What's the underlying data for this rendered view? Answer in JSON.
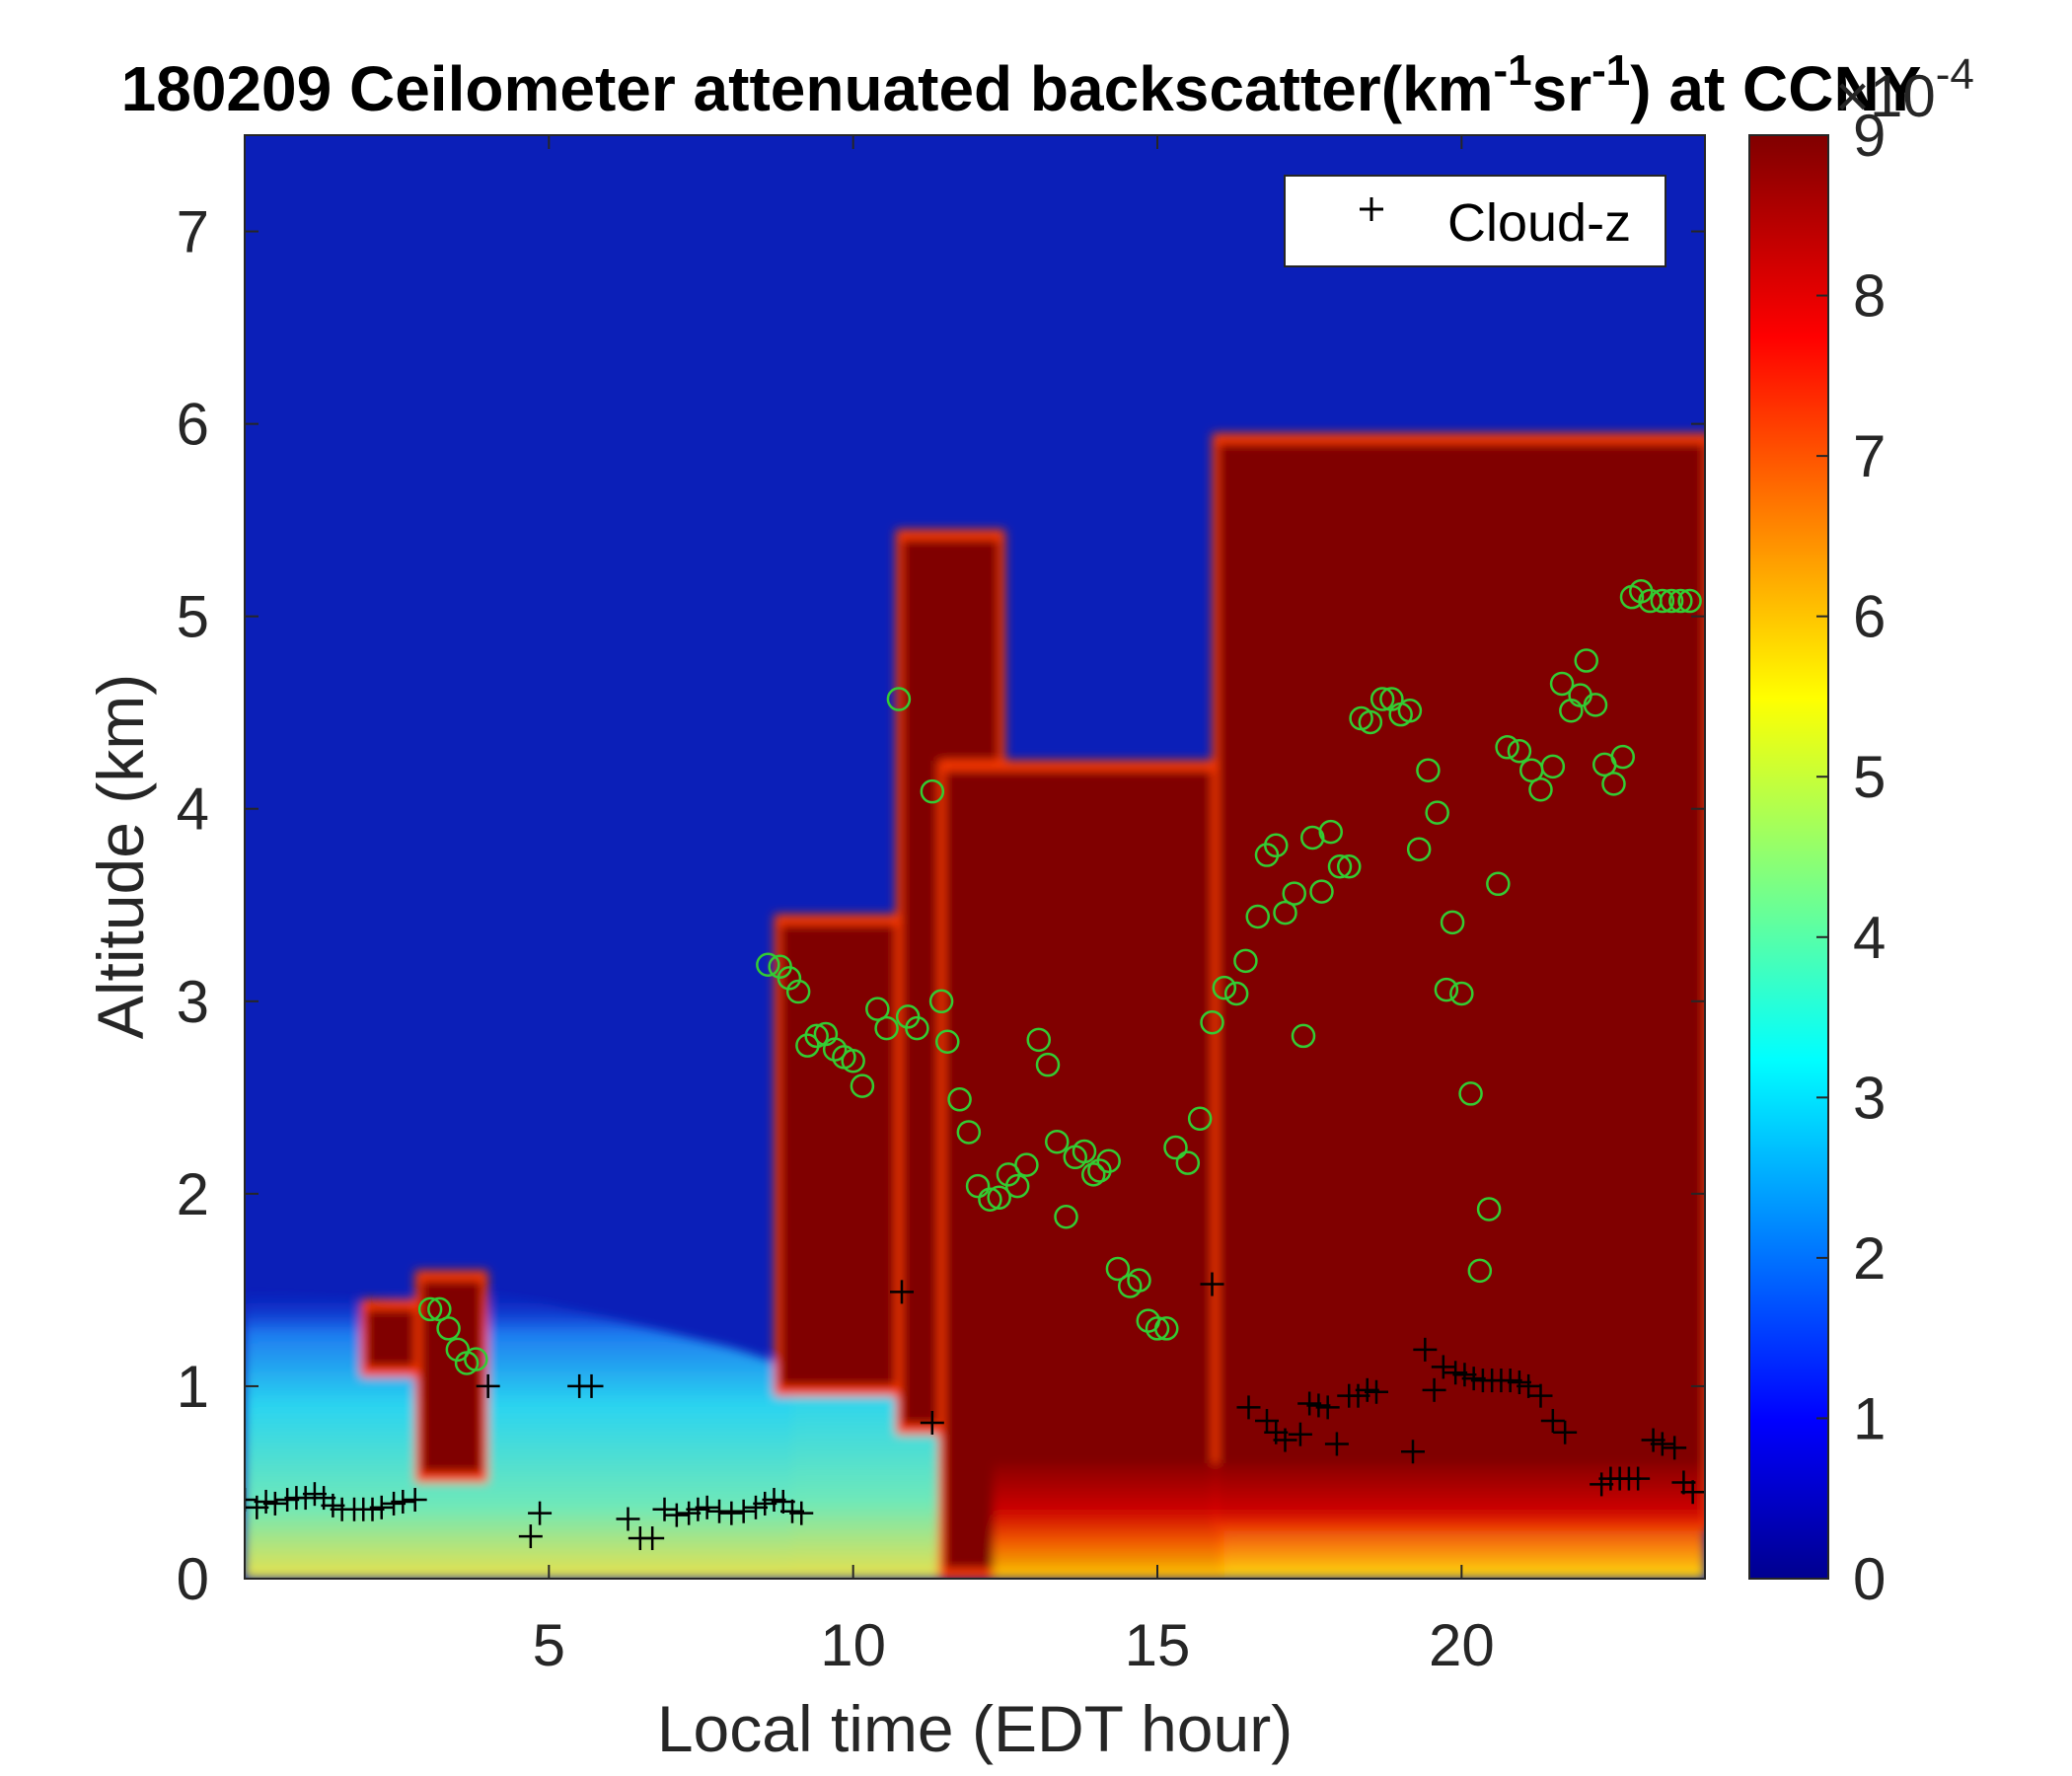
{
  "chart_data": {
    "type": "heatmap",
    "title": {
      "prefix": "180209 Ceilometer attenuated backscatter(km",
      "sup1": "-1",
      "mid": "sr",
      "sup2": "-1",
      "suffix": ") at CCNY"
    },
    "xlabel": "Local time (EDT hour)",
    "ylabel": "Altitude (km)",
    "xlim": [
      0,
      24
    ],
    "ylim": [
      0,
      7.5
    ],
    "xticks": [
      5,
      10,
      15,
      20
    ],
    "yticks": [
      0,
      1,
      2,
      3,
      4,
      5,
      6,
      7
    ],
    "colorbar": {
      "colormap": "jet",
      "range": [
        0,
        9
      ],
      "ticks": [
        0,
        1,
        2,
        3,
        4,
        5,
        6,
        7,
        8,
        9
      ],
      "exponent_label": {
        "base": "×10",
        "exp": "-4"
      }
    },
    "legend": {
      "entries": [
        "Cloud-z"
      ],
      "location": "top-right"
    },
    "features": {
      "surface_layer_top_km": [
        [
          0,
          1.5
        ],
        [
          2,
          1.45
        ],
        [
          4,
          1.5
        ],
        [
          6,
          1.35
        ],
        [
          8,
          1.2
        ],
        [
          9,
          1.1
        ],
        [
          10,
          1.0
        ]
      ],
      "cloud_regions": [
        {
          "time_start": 2.0,
          "time_end": 2.8,
          "base_km": 1.1,
          "top_km": 1.4
        },
        {
          "time_start": 2.9,
          "time_end": 3.9,
          "base_km": 0.55,
          "top_km": 1.55
        },
        {
          "time_start": 8.8,
          "time_end": 11.5,
          "base_km": 1.0,
          "top_km": 3.4
        },
        {
          "time_start": 10.8,
          "time_end": 12.4,
          "base_km": 0.8,
          "top_km": 5.4
        },
        {
          "time_start": 11.5,
          "time_end": 16.0,
          "base_km": 0.05,
          "top_km": 4.2
        },
        {
          "time_start": 16.0,
          "time_end": 24.0,
          "base_km": 0.3,
          "top_km": 5.9
        }
      ]
    },
    "series": [
      {
        "name": "Cloud-z",
        "marker": "+",
        "color": "#000000",
        "x": [
          0.0,
          0.2,
          0.35,
          0.5,
          0.7,
          0.85,
          1.0,
          1.15,
          1.3,
          1.45,
          1.6,
          1.8,
          1.95,
          2.1,
          2.25,
          2.45,
          2.6,
          2.8,
          4.0,
          4.7,
          4.85,
          5.5,
          5.7,
          6.3,
          6.5,
          6.7,
          6.9,
          7.1,
          7.3,
          7.45,
          7.6,
          7.8,
          8.0,
          8.2,
          8.4,
          8.55,
          8.7,
          8.85,
          9.0,
          9.15,
          10.8,
          11.3,
          15.9,
          16.5,
          16.8,
          16.95,
          17.1,
          17.35,
          17.5,
          17.65,
          17.8,
          17.95,
          18.15,
          18.3,
          18.45,
          18.6,
          19.2,
          19.4,
          19.55,
          19.7,
          19.9,
          20.05,
          20.2,
          20.35,
          20.5,
          20.65,
          20.8,
          20.95,
          21.1,
          21.3,
          21.5,
          21.7,
          22.3,
          22.45,
          22.6,
          22.75,
          22.9,
          23.15,
          23.3,
          23.5,
          23.65,
          23.8
        ],
        "y": [
          0.41,
          0.37,
          0.4,
          0.39,
          0.41,
          0.42,
          0.42,
          0.44,
          0.42,
          0.38,
          0.36,
          0.36,
          0.36,
          0.36,
          0.37,
          0.39,
          0.4,
          0.41,
          1.0,
          0.22,
          0.34,
          1.0,
          1.0,
          0.31,
          0.21,
          0.21,
          0.36,
          0.33,
          0.34,
          0.36,
          0.37,
          0.35,
          0.34,
          0.35,
          0.37,
          0.39,
          0.41,
          0.4,
          0.35,
          0.34,
          1.49,
          0.81,
          1.53,
          0.89,
          0.82,
          0.76,
          0.72,
          0.75,
          0.91,
          0.9,
          0.89,
          0.7,
          0.95,
          0.95,
          0.98,
          0.97,
          0.66,
          1.19,
          0.98,
          1.1,
          1.07,
          1.06,
          1.04,
          1.03,
          1.03,
          1.03,
          1.03,
          1.02,
          1.0,
          0.95,
          0.82,
          0.76,
          0.49,
          0.52,
          0.52,
          0.52,
          0.52,
          0.72,
          0.7,
          0.68,
          0.5,
          0.45
        ]
      },
      {
        "marker": "o",
        "color": "#33cc33",
        "x": [
          3.05,
          3.2,
          3.35,
          3.5,
          3.65,
          3.8,
          8.6,
          8.8,
          8.95,
          9.1,
          9.25,
          9.4,
          9.55,
          9.7,
          9.85,
          10.0,
          10.15,
          10.4,
          10.55,
          10.75,
          10.9,
          11.05,
          11.3,
          11.45,
          11.55,
          11.75,
          11.9,
          12.05,
          12.25,
          12.4,
          12.55,
          12.7,
          12.85,
          13.05,
          13.2,
          13.35,
          13.5,
          13.65,
          13.8,
          13.95,
          14.05,
          14.2,
          14.35,
          14.55,
          14.7,
          14.85,
          15.0,
          15.15,
          15.3,
          15.5,
          15.7,
          15.9,
          16.1,
          16.3,
          16.45,
          16.65,
          16.8,
          16.95,
          17.1,
          17.25,
          17.4,
          17.55,
          17.7,
          17.85,
          18.0,
          18.15,
          18.35,
          18.5,
          18.7,
          18.85,
          19.0,
          19.15,
          19.3,
          19.45,
          19.6,
          19.75,
          19.85,
          20.0,
          20.15,
          20.3,
          20.45,
          20.6,
          20.75,
          20.95,
          21.15,
          21.3,
          21.5,
          21.65,
          21.8,
          21.95,
          22.05,
          22.2,
          22.35,
          22.5,
          22.65,
          22.8,
          22.95,
          23.1,
          23.3,
          23.45,
          23.6,
          23.75
        ],
        "y": [
          1.4,
          1.4,
          1.3,
          1.19,
          1.12,
          1.14,
          3.19,
          3.18,
          3.12,
          3.05,
          2.77,
          2.82,
          2.83,
          2.75,
          2.71,
          2.69,
          2.56,
          2.96,
          2.86,
          4.57,
          2.92,
          2.86,
          4.09,
          3.0,
          2.79,
          2.49,
          2.32,
          2.04,
          1.97,
          1.98,
          2.1,
          2.04,
          2.15,
          2.8,
          2.67,
          2.27,
          1.88,
          2.19,
          2.22,
          2.1,
          2.12,
          2.17,
          1.61,
          1.52,
          1.55,
          1.34,
          1.3,
          1.3,
          2.24,
          2.16,
          2.39,
          2.89,
          3.07,
          3.04,
          3.21,
          3.44,
          3.76,
          3.81,
          3.46,
          3.56,
          2.82,
          3.85,
          3.57,
          3.88,
          3.7,
          3.7,
          4.47,
          4.45,
          4.57,
          4.57,
          4.49,
          4.51,
          3.79,
          4.2,
          3.98,
          3.06,
          3.41,
          3.04,
          2.52,
          1.6,
          1.92,
          3.61,
          4.32,
          4.3,
          4.2,
          4.1,
          4.22,
          4.65,
          4.51,
          4.59,
          4.77,
          4.54,
          4.23,
          4.13,
          4.27,
          5.1,
          5.13,
          5.08,
          5.08,
          5.08,
          5.08,
          5.08
        ]
      }
    ]
  }
}
